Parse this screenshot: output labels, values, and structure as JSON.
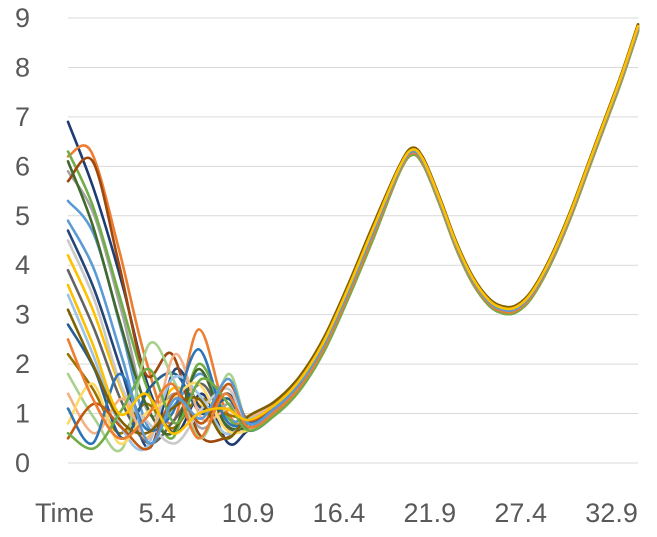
{
  "chart_data": {
    "type": "line",
    "title": "",
    "xlabel": "",
    "ylabel": "",
    "x_tick_labels": [
      "Time",
      "5.4",
      "10.9",
      "16.4",
      "21.9",
      "27.4",
      "32.9"
    ],
    "x_tick_values": [
      0,
      5.4,
      10.9,
      16.4,
      21.9,
      27.4,
      32.9
    ],
    "xlim": [
      0,
      34.5
    ],
    "y_tick_labels": [
      "0",
      "1",
      "2",
      "3",
      "4",
      "5",
      "6",
      "7",
      "8",
      "9"
    ],
    "y_tick_values": [
      0,
      1,
      2,
      3,
      4,
      5,
      6,
      7,
      8,
      9
    ],
    "ylim": [
      0,
      9
    ],
    "grid": true,
    "legend": "none",
    "palette": [
      "#1f3b73",
      "#ed7d31",
      "#a5a5a5",
      "#ffc000",
      "#5b9bd5",
      "#70ad47",
      "#264478",
      "#9e480e",
      "#636363",
      "#997300",
      "#255e91",
      "#43682b",
      "#a9d18e",
      "#9dc3e6",
      "#f4b183",
      "#ffd966",
      "#c9c9c9",
      "#2e75b6",
      "#c55a11",
      "#7f6000"
    ],
    "common_tail": {
      "x": [
        10.9,
        12.5,
        14.0,
        15.5,
        17.0,
        18.5,
        20.0,
        20.8,
        21.5,
        22.5,
        23.5,
        24.5,
        25.5,
        26.3,
        27.0,
        27.8,
        28.6,
        29.5,
        30.5,
        31.5,
        32.5,
        33.5,
        34.5
      ],
      "y": [
        0.8,
        1.1,
        1.6,
        2.4,
        3.5,
        4.7,
        5.9,
        6.3,
        6.1,
        5.3,
        4.4,
        3.7,
        3.25,
        3.1,
        3.1,
        3.3,
        3.7,
        4.3,
        5.1,
        6.0,
        6.9,
        7.8,
        8.8
      ]
    },
    "series": [
      {
        "color": "#1f3b73",
        "x": [
          0,
          1.6,
          3.3,
          4.9,
          6.5,
          8.1,
          9.7,
          10.9
        ],
        "y": [
          6.9,
          5.5,
          3.6,
          1.5,
          0.6,
          1.4,
          0.4,
          0.8
        ]
      },
      {
        "color": "#ed7d31",
        "x": [
          0,
          1.4,
          3.1,
          4.7,
          6.3,
          7.9,
          9.5,
          10.9
        ],
        "y": [
          6.2,
          6.3,
          4.3,
          2.1,
          0.8,
          2.7,
          1.1,
          0.8
        ]
      },
      {
        "color": "#a5a5a5",
        "x": [
          0,
          1.6,
          3.3,
          4.9,
          6.5,
          8.1,
          9.7,
          10.9
        ],
        "y": [
          5.9,
          5.0,
          3.0,
          1.0,
          1.4,
          0.7,
          1.2,
          0.8
        ]
      },
      {
        "color": "#ffc000",
        "x": [
          0,
          1.5,
          3.1,
          4.7,
          6.3,
          7.9,
          9.5,
          10.9
        ],
        "y": [
          4.2,
          3.1,
          1.6,
          0.5,
          1.5,
          1.2,
          0.6,
          0.8
        ]
      },
      {
        "color": "#5b9bd5",
        "x": [
          0,
          1.6,
          3.3,
          4.9,
          6.5,
          8.1,
          9.7,
          10.9
        ],
        "y": [
          5.3,
          4.6,
          2.6,
          0.7,
          1.2,
          1.8,
          0.9,
          0.8
        ]
      },
      {
        "color": "#70ad47",
        "x": [
          0,
          1.5,
          3.1,
          4.7,
          6.3,
          7.9,
          9.5,
          10.9
        ],
        "y": [
          6.3,
          5.2,
          3.4,
          1.6,
          0.5,
          2.0,
          1.0,
          0.8
        ]
      },
      {
        "color": "#264478",
        "x": [
          0,
          1.6,
          3.3,
          4.9,
          6.5,
          8.1,
          9.7,
          10.9
        ],
        "y": [
          4.7,
          3.5,
          1.8,
          0.3,
          1.9,
          1.1,
          1.4,
          0.8
        ]
      },
      {
        "color": "#9e480e",
        "x": [
          0,
          1.5,
          3.1,
          4.7,
          6.3,
          7.9,
          9.5,
          10.9
        ],
        "y": [
          5.7,
          6.1,
          4.0,
          1.8,
          2.2,
          0.6,
          0.5,
          0.8
        ]
      },
      {
        "color": "#636363",
        "x": [
          0,
          1.6,
          3.3,
          4.9,
          6.5,
          8.1,
          9.7,
          10.9
        ],
        "y": [
          3.9,
          2.7,
          1.2,
          0.4,
          0.9,
          1.6,
          0.7,
          0.8
        ]
      },
      {
        "color": "#997300",
        "x": [
          0,
          1.5,
          3.1,
          4.7,
          6.3,
          7.9,
          9.5,
          10.9
        ],
        "y": [
          2.2,
          1.5,
          0.6,
          1.2,
          0.7,
          1.3,
          1.0,
          0.8
        ]
      },
      {
        "color": "#255e91",
        "x": [
          0,
          1.6,
          3.3,
          4.9,
          6.5,
          8.1,
          9.7,
          10.9
        ],
        "y": [
          2.8,
          1.9,
          0.5,
          1.5,
          1.8,
          1.0,
          1.3,
          0.8
        ]
      },
      {
        "color": "#43682b",
        "x": [
          0,
          1.5,
          3.1,
          4.7,
          6.3,
          7.9,
          9.5,
          10.9
        ],
        "y": [
          6.1,
          4.8,
          2.9,
          1.2,
          0.6,
          1.9,
          0.8,
          0.8
        ]
      },
      {
        "color": "#a9d18e",
        "x": [
          0,
          1.6,
          3.3,
          4.9,
          6.5,
          8.1,
          9.7,
          10.9
        ],
        "y": [
          1.8,
          0.9,
          0.3,
          2.4,
          1.6,
          0.5,
          1.8,
          0.8
        ]
      },
      {
        "color": "#9dc3e6",
        "x": [
          0,
          1.5,
          3.1,
          4.7,
          6.3,
          7.9,
          9.5,
          10.9
        ],
        "y": [
          3.4,
          2.2,
          0.8,
          0.3,
          1.7,
          1.4,
          0.6,
          0.8
        ]
      },
      {
        "color": "#f4b183",
        "x": [
          0,
          1.6,
          3.3,
          4.9,
          6.5,
          8.1,
          9.7,
          10.9
        ],
        "y": [
          1.4,
          0.6,
          1.3,
          0.5,
          2.2,
          0.9,
          1.1,
          0.8
        ]
      },
      {
        "color": "#ffd966",
        "x": [
          0,
          1.5,
          3.1,
          4.7,
          6.3,
          7.9,
          9.5,
          10.9
        ],
        "y": [
          0.8,
          1.6,
          0.4,
          1.0,
          1.3,
          1.6,
          0.7,
          0.8
        ]
      },
      {
        "color": "#c9c9c9",
        "x": [
          0,
          1.6,
          3.3,
          4.9,
          6.5,
          8.1,
          9.7,
          10.9
        ],
        "y": [
          4.5,
          3.3,
          1.5,
          0.8,
          0.4,
          1.1,
          1.5,
          0.8
        ]
      },
      {
        "color": "#2e75b6",
        "x": [
          0,
          1.5,
          3.1,
          4.7,
          6.3,
          7.9,
          9.5,
          10.9
        ],
        "y": [
          1.1,
          0.4,
          1.8,
          0.7,
          1.0,
          2.3,
          0.9,
          0.8
        ]
      },
      {
        "color": "#c55a11",
        "x": [
          0,
          1.6,
          3.3,
          4.9,
          6.5,
          8.1,
          9.7,
          10.9
        ],
        "y": [
          0.5,
          1.2,
          0.7,
          0.3,
          1.4,
          0.8,
          1.6,
          0.8
        ]
      },
      {
        "color": "#7f6000",
        "x": [
          0,
          1.5,
          3.1,
          4.7,
          6.3,
          7.9,
          9.5,
          10.9
        ],
        "y": [
          3.1,
          2.0,
          0.9,
          0.6,
          1.1,
          1.3,
          0.5,
          0.8
        ]
      },
      {
        "color": "#70ad47",
        "x": [
          0,
          1.6,
          3.3,
          4.9,
          6.5,
          8.1,
          9.7,
          10.9
        ],
        "y": [
          0.6,
          0.3,
          1.1,
          1.9,
          0.8,
          1.7,
          1.2,
          0.8
        ]
      },
      {
        "color": "#ed7d31",
        "x": [
          0,
          1.5,
          3.1,
          4.7,
          6.3,
          7.9,
          9.5,
          10.9
        ],
        "y": [
          2.5,
          1.3,
          0.5,
          0.9,
          1.6,
          0.5,
          1.4,
          0.8
        ]
      },
      {
        "color": "#5b9bd5",
        "x": [
          0,
          1.6,
          3.3,
          4.9,
          6.5,
          8.1,
          9.7,
          10.9
        ],
        "y": [
          4.9,
          3.9,
          2.1,
          0.4,
          1.3,
          0.9,
          1.7,
          0.8
        ]
      },
      {
        "color": "#ffc000",
        "x": [
          0,
          1.5,
          3.1,
          4.7,
          6.3,
          7.9,
          9.5,
          10.9
        ],
        "y": [
          3.6,
          2.4,
          1.0,
          1.4,
          0.6,
          1.0,
          1.1,
          0.8
        ]
      }
    ]
  }
}
